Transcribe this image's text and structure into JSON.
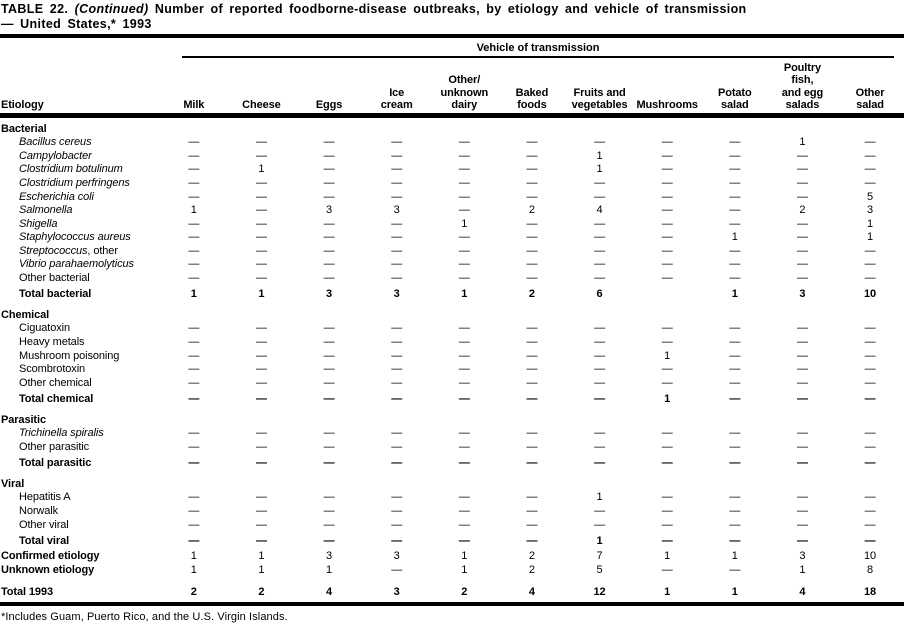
{
  "title": {
    "label": "TABLE 22.",
    "continued": "(Continued)",
    "rest": "Number of reported foodborne-disease outbreaks, by etiology and vehicle of transmission",
    "line2": "— United States,* 1993"
  },
  "table": {
    "span_header": "Vehicle of transmission",
    "columns": [
      {
        "key": "etiology",
        "label": "Etiology"
      },
      {
        "key": "milk",
        "label": "Milk"
      },
      {
        "key": "cheese",
        "label": "Cheese"
      },
      {
        "key": "eggs",
        "label": "Eggs"
      },
      {
        "key": "ice-cream",
        "label": "Ice\ncream"
      },
      {
        "key": "other-unknown-dairy",
        "label": "Other/\nunknown\ndairy"
      },
      {
        "key": "baked-foods",
        "label": "Baked\nfoods"
      },
      {
        "key": "fruits-and-vegetables",
        "label": "Fruits and\nvegetables"
      },
      {
        "key": "mushrooms",
        "label": "Mushrooms"
      },
      {
        "key": "potato-salad",
        "label": "Potato\nsalad"
      },
      {
        "key": "poultry-fish-and-egg-salads",
        "label": "Poultry\nfish,\nand egg\nsalads"
      },
      {
        "key": "other-salad",
        "label": "Other\nsalad"
      }
    ],
    "rows": [
      {
        "label": "Bacterial",
        "style": "section",
        "cells": []
      },
      {
        "label": "Bacillus cereus",
        "style": "species",
        "cells": [
          "—",
          "—",
          "—",
          "—",
          "—",
          "—",
          "—",
          "—",
          "—",
          "1",
          "—"
        ]
      },
      {
        "label": "Campylobacter",
        "style": "species",
        "cells": [
          "—",
          "—",
          "—",
          "—",
          "—",
          "—",
          "1",
          "—",
          "—",
          "—",
          "—"
        ]
      },
      {
        "label": "Clostridium botulinum",
        "style": "species",
        "cells": [
          "—",
          "1",
          "—",
          "—",
          "—",
          "—",
          "1",
          "—",
          "—",
          "—",
          "—"
        ]
      },
      {
        "label": "Clostridium perfringens",
        "style": "species",
        "cells": [
          "—",
          "—",
          "—",
          "—",
          "—",
          "—",
          "—",
          "—",
          "—",
          "—",
          "—"
        ]
      },
      {
        "label": "Escherichia coli",
        "style": "species",
        "cells": [
          "—",
          "—",
          "—",
          "—",
          "—",
          "—",
          "—",
          "—",
          "—",
          "—",
          "5"
        ]
      },
      {
        "label": "Salmonella",
        "style": "species",
        "cells": [
          "1",
          "—",
          "3",
          "3",
          "—",
          "2",
          "4",
          "—",
          "—",
          "2",
          "3"
        ]
      },
      {
        "label": "Shigella",
        "style": "species",
        "cells": [
          "—",
          "—",
          "—",
          "—",
          "1",
          "—",
          "—",
          "—",
          "—",
          "—",
          "1"
        ]
      },
      {
        "label": "Staphylococcus aureus",
        "style": "species",
        "cells": [
          "—",
          "—",
          "—",
          "—",
          "—",
          "—",
          "—",
          "—",
          "1",
          "—",
          "1"
        ]
      },
      {
        "label": "Streptococcus",
        "suffix": ", other",
        "style": "species",
        "cells": [
          "—",
          "—",
          "—",
          "—",
          "—",
          "—",
          "—",
          "—",
          "—",
          "—",
          "—"
        ]
      },
      {
        "label": "Vibrio parahaemolyticus",
        "style": "species",
        "cells": [
          "—",
          "—",
          "—",
          "—",
          "—",
          "—",
          "—",
          "—",
          "—",
          "—",
          "—"
        ]
      },
      {
        "label": "Other bacterial",
        "style": "plain",
        "cells": [
          "—",
          "—",
          "—",
          "—",
          "—",
          "—",
          "—",
          "—",
          "—",
          "—",
          "—"
        ]
      },
      {
        "label": "Total bacterial",
        "style": "total",
        "cells": [
          "1",
          "1",
          "3",
          "3",
          "1",
          "2",
          "6",
          "",
          "1",
          "3",
          "10"
        ]
      },
      {
        "label": "Chemical",
        "style": "section",
        "cells": []
      },
      {
        "label": "Ciguatoxin",
        "style": "plain",
        "cells": [
          "—",
          "—",
          "—",
          "—",
          "—",
          "—",
          "—",
          "—",
          "—",
          "—",
          "—"
        ]
      },
      {
        "label": "Heavy metals",
        "style": "plain",
        "cells": [
          "—",
          "—",
          "—",
          "—",
          "—",
          "—",
          "—",
          "—",
          "—",
          "—",
          "—"
        ]
      },
      {
        "label": "Mushroom poisoning",
        "style": "plain",
        "cells": [
          "—",
          "—",
          "—",
          "—",
          "—",
          "—",
          "—",
          "1",
          "—",
          "—",
          "—"
        ]
      },
      {
        "label": "Scombrotoxin",
        "style": "plain",
        "cells": [
          "—",
          "—",
          "—",
          "—",
          "—",
          "—",
          "—",
          "—",
          "—",
          "—",
          "—"
        ]
      },
      {
        "label": "Other chemical",
        "style": "plain",
        "cells": [
          "—",
          "—",
          "—",
          "—",
          "—",
          "—",
          "—",
          "—",
          "—",
          "—",
          "—"
        ]
      },
      {
        "label": "Total chemical",
        "style": "total",
        "cells": [
          "—",
          "—",
          "—",
          "—",
          "—",
          "—",
          "—",
          "1",
          "—",
          "—",
          "—"
        ]
      },
      {
        "label": "Parasitic",
        "style": "section",
        "cells": []
      },
      {
        "label": "Trichinella spiralis",
        "style": "species",
        "cells": [
          "—",
          "—",
          "—",
          "—",
          "—",
          "—",
          "—",
          "—",
          "—",
          "—",
          "—"
        ]
      },
      {
        "label": "Other parasitic",
        "style": "plain",
        "cells": [
          "—",
          "—",
          "—",
          "—",
          "—",
          "—",
          "—",
          "—",
          "—",
          "—",
          "—"
        ]
      },
      {
        "label": "Total parasitic",
        "style": "total",
        "cells": [
          "—",
          "—",
          "—",
          "—",
          "—",
          "—",
          "—",
          "—",
          "—",
          "—",
          "—"
        ]
      },
      {
        "label": "Viral",
        "style": "section",
        "cells": []
      },
      {
        "label": "Hepatitis A",
        "style": "plain",
        "cells": [
          "—",
          "—",
          "—",
          "—",
          "—",
          "—",
          "1",
          "—",
          "—",
          "—",
          "—"
        ]
      },
      {
        "label": "Norwalk",
        "style": "plain",
        "cells": [
          "—",
          "—",
          "—",
          "—",
          "—",
          "—",
          "—",
          "—",
          "—",
          "—",
          "—"
        ]
      },
      {
        "label": "Other viral",
        "style": "plain",
        "cells": [
          "—",
          "—",
          "—",
          "—",
          "—",
          "—",
          "—",
          "—",
          "—",
          "—",
          "—"
        ]
      },
      {
        "label": "Total viral",
        "style": "total",
        "cells": [
          "—",
          "—",
          "—",
          "—",
          "—",
          "—",
          "1",
          "—",
          "—",
          "—",
          "—"
        ]
      },
      {
        "label": "Confirmed etiology",
        "style": "summary",
        "cells": [
          "1",
          "1",
          "3",
          "3",
          "1",
          "2",
          "7",
          "1",
          "1",
          "3",
          "10"
        ]
      },
      {
        "label": "Unknown etiology",
        "style": "summary",
        "cells": [
          "1",
          "1",
          "1",
          "—",
          "1",
          "2",
          "5",
          "—",
          "—",
          "1",
          "8"
        ]
      },
      {
        "label": "Total 1993",
        "style": "grand",
        "cells": [
          "2",
          "2",
          "4",
          "3",
          "2",
          "4",
          "12",
          "1",
          "1",
          "4",
          "18"
        ]
      }
    ]
  },
  "footnote": "*Includes Guam, Puerto Rico, and the U.S. Virgin Islands."
}
